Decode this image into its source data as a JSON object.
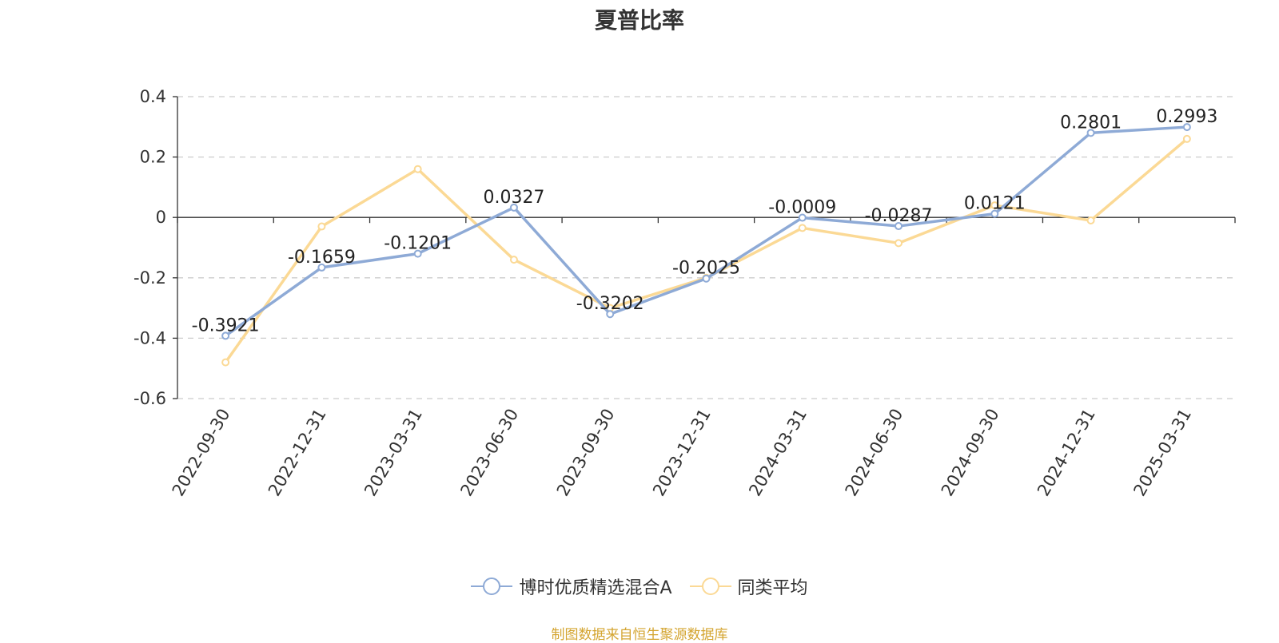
{
  "chart_data": {
    "type": "line",
    "title": "夏普比率",
    "categories": [
      "2022-09-30",
      "2022-12-31",
      "2023-03-31",
      "2023-06-30",
      "2023-09-30",
      "2023-12-31",
      "2024-03-31",
      "2024-06-30",
      "2024-09-30",
      "2024-12-31",
      "2025-03-31"
    ],
    "series": [
      {
        "name": "博时优质精选混合A",
        "color": "#8eaad6",
        "values": [
          -0.3921,
          -0.1659,
          -0.1201,
          0.0327,
          -0.3202,
          -0.2025,
          -0.0009,
          -0.0287,
          0.0121,
          0.2801,
          0.2993
        ],
        "labels": [
          "-0.3921",
          "-0.1659",
          "-0.1201",
          "0.0327",
          "-0.3202",
          "-0.2025",
          "-0.0009",
          "-0.0287",
          "0.0121",
          "0.2801",
          "0.2993"
        ]
      },
      {
        "name": "同类平均",
        "color": "#fbd995",
        "values": [
          -0.48,
          -0.03,
          0.16,
          -0.14,
          -0.3,
          -0.2,
          -0.035,
          -0.085,
          0.04,
          -0.01,
          0.26
        ]
      }
    ],
    "ylim": [
      -0.6,
      0.4
    ],
    "yticks": [
      0.4,
      0.2,
      0,
      -0.2,
      -0.4,
      -0.6
    ],
    "ytick_labels": [
      "0.4",
      "0.2",
      "0",
      "-0.2",
      "-0.4",
      "-0.6"
    ],
    "grid": true,
    "legend_position": "bottom"
  },
  "footer": {
    "source": "制图数据来自恒生聚源数据库"
  }
}
